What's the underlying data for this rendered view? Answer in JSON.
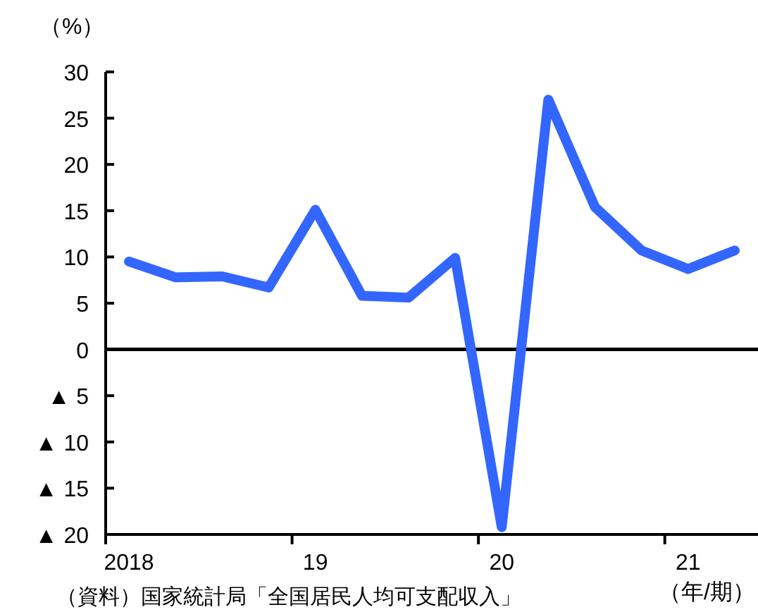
{
  "chart_data": {
    "type": "line",
    "categories": [
      "2018",
      null,
      null,
      null,
      "19",
      null,
      null,
      null,
      "20",
      null,
      null,
      null,
      "21",
      null
    ],
    "series": [
      {
        "color": "#3366ff",
        "values": [
          9.5,
          7.8,
          7.9,
          6.7,
          15.1,
          5.8,
          5.6,
          9.9,
          -19.2,
          27.0,
          15.4,
          10.7,
          8.7,
          10.7
        ]
      }
    ],
    "ylim": [
      -20,
      30
    ],
    "yticks": [
      30,
      25,
      20,
      15,
      10,
      5,
      0,
      {
        "value": -5,
        "label": "▲ 5"
      },
      {
        "value": -10,
        "label": "▲ 10"
      },
      {
        "value": -15,
        "label": "▲ 15"
      },
      {
        "value": -20,
        "label": "▲ 20"
      }
    ],
    "ylabel": "（%）",
    "xlabel": "（年/期）",
    "ref_lines": [
      {
        "axis": "y",
        "value": 0,
        "color": "#000000"
      }
    ],
    "annotations": [
      "（資料）国家統計局「全国居民人均可支配収入」"
    ],
    "grid": false,
    "marker": "none",
    "line_style": "solid"
  }
}
